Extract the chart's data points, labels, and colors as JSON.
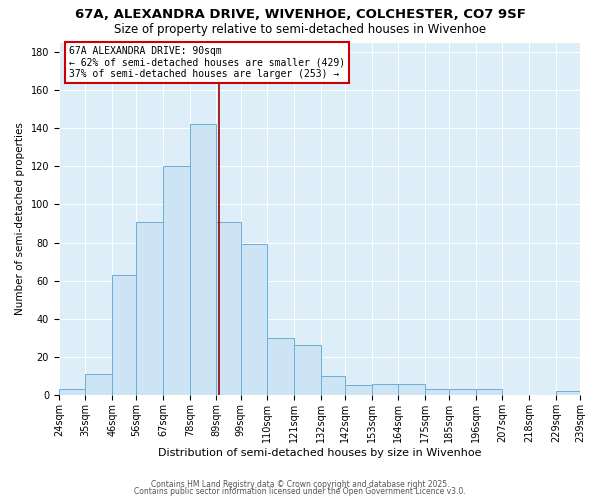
{
  "title": "67A, ALEXANDRA DRIVE, WIVENHOE, COLCHESTER, CO7 9SF",
  "subtitle": "Size of property relative to semi-detached houses in Wivenhoe",
  "xlabel": "Distribution of semi-detached houses by size in Wivenhoe",
  "ylabel": "Number of semi-detached properties",
  "bin_labels": [
    "24sqm",
    "35sqm",
    "46sqm",
    "56sqm",
    "67sqm",
    "78sqm",
    "89sqm",
    "99sqm",
    "110sqm",
    "121sqm",
    "132sqm",
    "142sqm",
    "153sqm",
    "164sqm",
    "175sqm",
    "185sqm",
    "196sqm",
    "207sqm",
    "218sqm",
    "229sqm",
    "239sqm"
  ],
  "bin_edges": [
    24,
    35,
    46,
    56,
    67,
    78,
    89,
    99,
    110,
    121,
    132,
    142,
    153,
    164,
    175,
    185,
    196,
    207,
    218,
    229,
    239
  ],
  "bar_heights": [
    3,
    11,
    63,
    91,
    120,
    142,
    91,
    79,
    30,
    26,
    10,
    5,
    6,
    6,
    3,
    3,
    3,
    0,
    0,
    2
  ],
  "bar_color": "#cde4f5",
  "bar_edge_color": "#6aaed6",
  "property_size": 90,
  "vline_color": "#990000",
  "annotation_title": "67A ALEXANDRA DRIVE: 90sqm",
  "annotation_line1": "← 62% of semi-detached houses are smaller (429)",
  "annotation_line2": "37% of semi-detached houses are larger (253) →",
  "annotation_box_edge": "#cc0000",
  "footer1": "Contains HM Land Registry data © Crown copyright and database right 2025.",
  "footer2": "Contains public sector information licensed under the Open Government Licence v3.0.",
  "fig_bg_color": "#ffffff",
  "ax_bg_color": "#ddeef8",
  "grid_color": "#ffffff",
  "ylim": [
    0,
    185
  ],
  "yticks": [
    0,
    20,
    40,
    60,
    80,
    100,
    120,
    140,
    160,
    180
  ],
  "title_fontsize": 9.5,
  "subtitle_fontsize": 8.5,
  "ylabel_fontsize": 7.5,
  "xlabel_fontsize": 8,
  "tick_fontsize": 7,
  "footer_fontsize": 5.5
}
